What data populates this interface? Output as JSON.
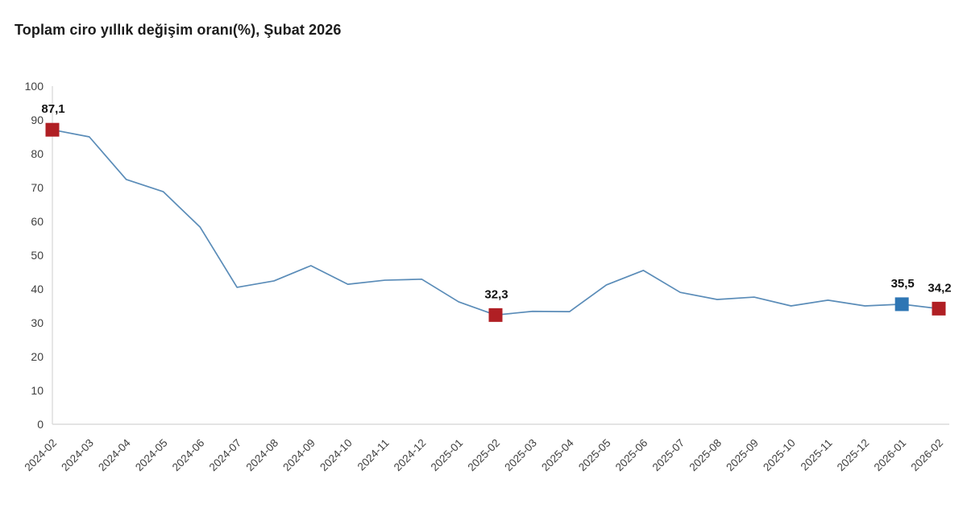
{
  "title": "Toplam ciro yıllık değişim oranı(%), Şubat 2026",
  "colors": {
    "line": "#5a8cb8",
    "marker_red": "#b01f24",
    "marker_blue": "#2e76b4",
    "axis_line": "#dcdcdc",
    "axis_tick_text": "#3f3f3f",
    "point_label_text": "#111111",
    "title_text": "#1c1c1c",
    "background": "#ffffff"
  },
  "chart_data": {
    "type": "line",
    "title": "Toplam ciro yıllık değişim oranı(%), Şubat 2026",
    "categories": [
      "2024-02",
      "2024-03",
      "2024-04",
      "2024-05",
      "2024-06",
      "2024-07",
      "2024-08",
      "2024-09",
      "2024-10",
      "2024-11",
      "2024-12",
      "2025-01",
      "2025-02",
      "2025-03",
      "2025-04",
      "2025-05",
      "2025-06",
      "2025-07",
      "2025-08",
      "2025-09",
      "2025-10",
      "2025-11",
      "2025-12",
      "2026-01",
      "2026-02"
    ],
    "series": [
      {
        "name": "Toplam ciro yıllık değişim oranı (%)",
        "values": [
          87.1,
          85.0,
          72.4,
          68.8,
          58.3,
          40.5,
          42.4,
          46.9,
          41.4,
          42.6,
          42.9,
          36.2,
          32.3,
          33.4,
          33.3,
          41.2,
          45.5,
          39.0,
          36.9,
          37.6,
          35.0,
          36.7,
          35.0,
          35.5,
          34.2
        ]
      }
    ],
    "highlighted_points": [
      {
        "category": "2024-02",
        "value": 87.1,
        "label": "87,1",
        "color": "#b01f24"
      },
      {
        "category": "2025-02",
        "value": 32.3,
        "label": "32,3",
        "color": "#b01f24"
      },
      {
        "category": "2026-01",
        "value": 35.5,
        "label": "35,5",
        "color": "#2e76b4"
      },
      {
        "category": "2026-02",
        "value": 34.2,
        "label": "34,2",
        "color": "#b01f24"
      }
    ],
    "xlabel": "",
    "ylabel": "",
    "ylim": [
      0,
      100
    ],
    "yticks": [
      0,
      10,
      20,
      30,
      40,
      50,
      60,
      70,
      80,
      90,
      100
    ],
    "grid": false,
    "legend": false,
    "decimal_separator": ","
  }
}
